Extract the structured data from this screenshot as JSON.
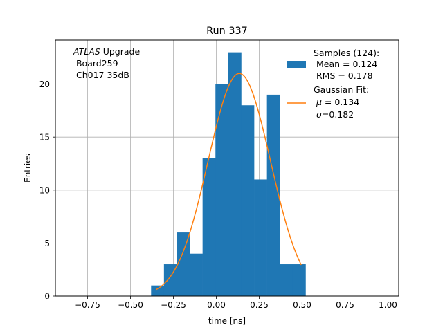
{
  "chart_data": {
    "type": "bar",
    "title": "Run 337",
    "xlabel": "time [ns]",
    "ylabel": "Entries",
    "xlim": [
      -0.9375,
      1.0625
    ],
    "ylim": [
      0,
      24.15
    ],
    "grid": true,
    "x_ticks": [
      -0.75,
      -0.5,
      -0.25,
      0.0,
      0.25,
      0.5,
      0.75,
      1.0
    ],
    "x_tick_labels": [
      "−0.75",
      "−0.50",
      "−0.25",
      "0.00",
      "0.25",
      "0.50",
      "0.75",
      "1.00"
    ],
    "y_ticks": [
      0,
      5,
      10,
      15,
      20
    ],
    "y_tick_labels": [
      "0",
      "5",
      "10",
      "15",
      "20"
    ],
    "annotation": {
      "line1_italic": "ATLAS",
      "line1_rest": " Upgrade",
      "line2": " Board259",
      "line3": " Ch017 35dB"
    },
    "histogram": {
      "name": "Samples (124):",
      "color": "#1f77b4",
      "bin_edges": [
        -0.38,
        -0.305,
        -0.23,
        -0.155,
        -0.08,
        -0.005,
        0.07,
        0.145,
        0.22,
        0.295,
        0.37,
        0.445,
        0.52
      ],
      "counts": [
        1,
        3,
        6,
        4,
        13,
        20,
        23,
        18,
        11,
        19,
        3,
        3
      ]
    },
    "fit": {
      "name": "Gaussian Fit:",
      "color": "#ff7f0e",
      "mu": 0.134,
      "sigma": 0.182,
      "amplitude": 21.0,
      "x_range": [
        -0.35,
        0.495
      ]
    },
    "legend": {
      "position": "top-right",
      "hist_lines": [
        "Samples (124):",
        " Mean = 0.124",
        " RMS = 0.178"
      ],
      "fit_line1": "Gaussian Fit:",
      "fit_mu_value": " = 0.134",
      "fit_sigma_value": "=0.182"
    }
  }
}
